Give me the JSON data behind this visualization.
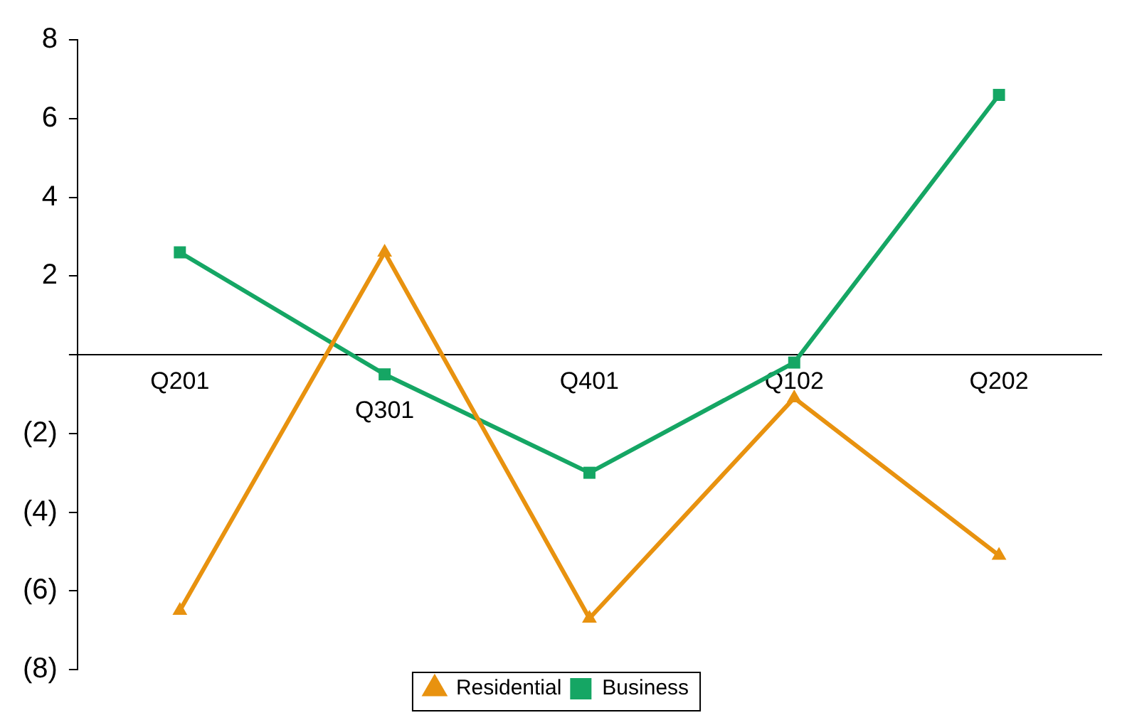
{
  "chart_data": {
    "type": "line",
    "categories": [
      "Q201",
      "Q301",
      "Q401",
      "Q102",
      "Q202"
    ],
    "series": [
      {
        "name": "Residential",
        "color": "#e8920f",
        "marker": "triangle",
        "values": [
          -6.5,
          2.6,
          -6.7,
          -1.1,
          -5.1
        ]
      },
      {
        "name": "Business",
        "color": "#15a664",
        "marker": "square",
        "values": [
          2.6,
          -0.5,
          -3.0,
          -0.2,
          6.6
        ]
      }
    ],
    "ylim": [
      -8,
      8
    ],
    "yticks": [
      {
        "value": -8,
        "label": "(8)"
      },
      {
        "value": -6,
        "label": "(6)"
      },
      {
        "value": -4,
        "label": "(4)"
      },
      {
        "value": -2,
        "label": "(2)"
      },
      {
        "value": 0,
        "label": null
      },
      2,
      4,
      6,
      8
    ],
    "grid": false,
    "legend": "bottom",
    "line_style": "solid"
  }
}
